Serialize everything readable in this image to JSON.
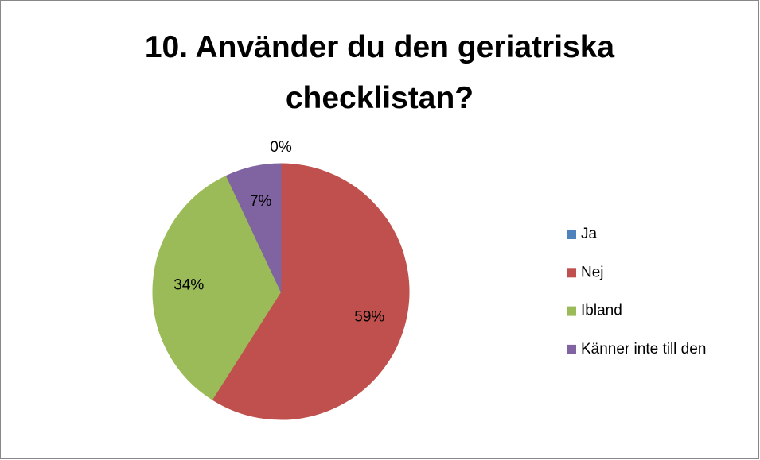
{
  "chart_data": {
    "type": "pie",
    "title": "10. Använder du den geriatriska checklistan?",
    "categories": [
      "Ja",
      "Nej",
      "Ibland",
      "Känner inte till den"
    ],
    "values": [
      0,
      59,
      34,
      7
    ],
    "value_labels": [
      "0%",
      "59%",
      "34%",
      "7%"
    ],
    "colors": [
      "#4f81bd",
      "#c0504d",
      "#9bbb59",
      "#8064a2"
    ],
    "legend": "right"
  }
}
